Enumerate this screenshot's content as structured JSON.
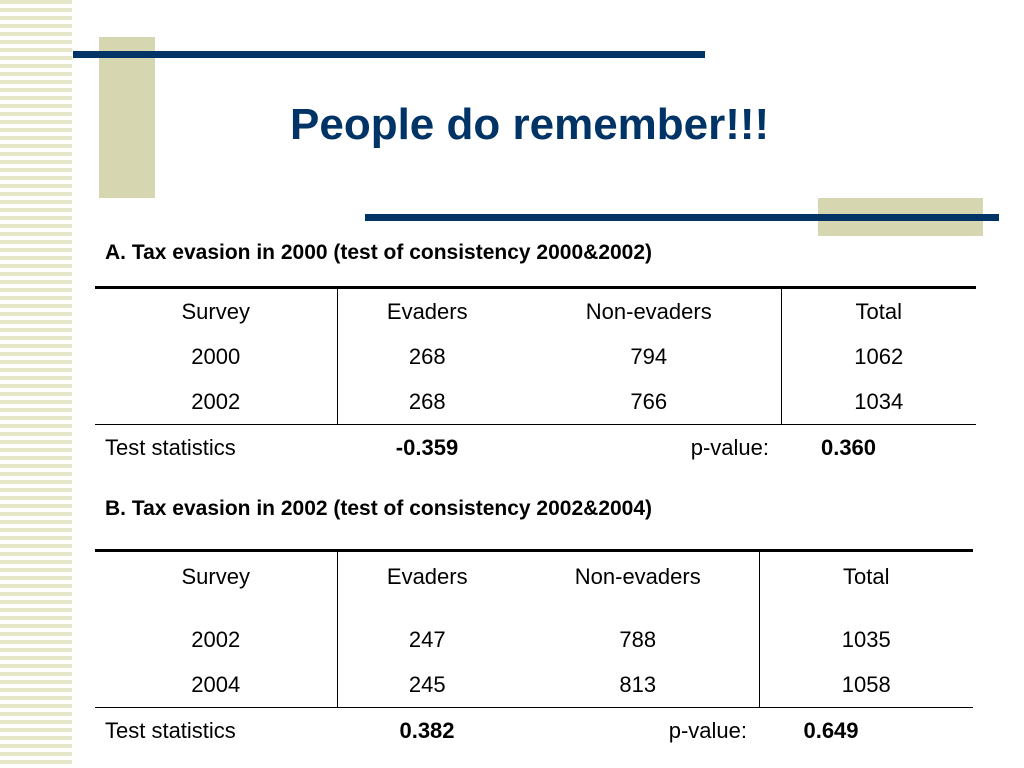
{
  "slide": {
    "title": "People do remember!!!",
    "accent_color": "#003366",
    "decor_color": "#d6d6b0"
  },
  "section_a": {
    "heading": "A. Tax evasion in 2000 (test of consistency 2000&2002)",
    "columns": [
      "Survey",
      "Evaders",
      "Non-evaders",
      "Total"
    ],
    "rows": [
      [
        "2000",
        "268",
        "794",
        "1062"
      ],
      [
        "2002",
        "268",
        "766",
        "1034"
      ]
    ],
    "test_label": "Test statistics",
    "test_value": "-0.359",
    "pvalue_label": "p-value:",
    "pvalue": "0.360"
  },
  "section_b": {
    "heading": "B. Tax evasion in 2002 (test of consistency 2002&2004)",
    "columns": [
      "Survey",
      "Evaders",
      "Non-evaders",
      "Total"
    ],
    "rows": [
      [
        "2002",
        "247",
        "788",
        "1035"
      ],
      [
        "2004",
        "245",
        "813",
        "1058"
      ]
    ],
    "test_label": "Test statistics",
    "test_value": "0.382",
    "pvalue_label": "p-value:",
    "pvalue": "0.649"
  }
}
